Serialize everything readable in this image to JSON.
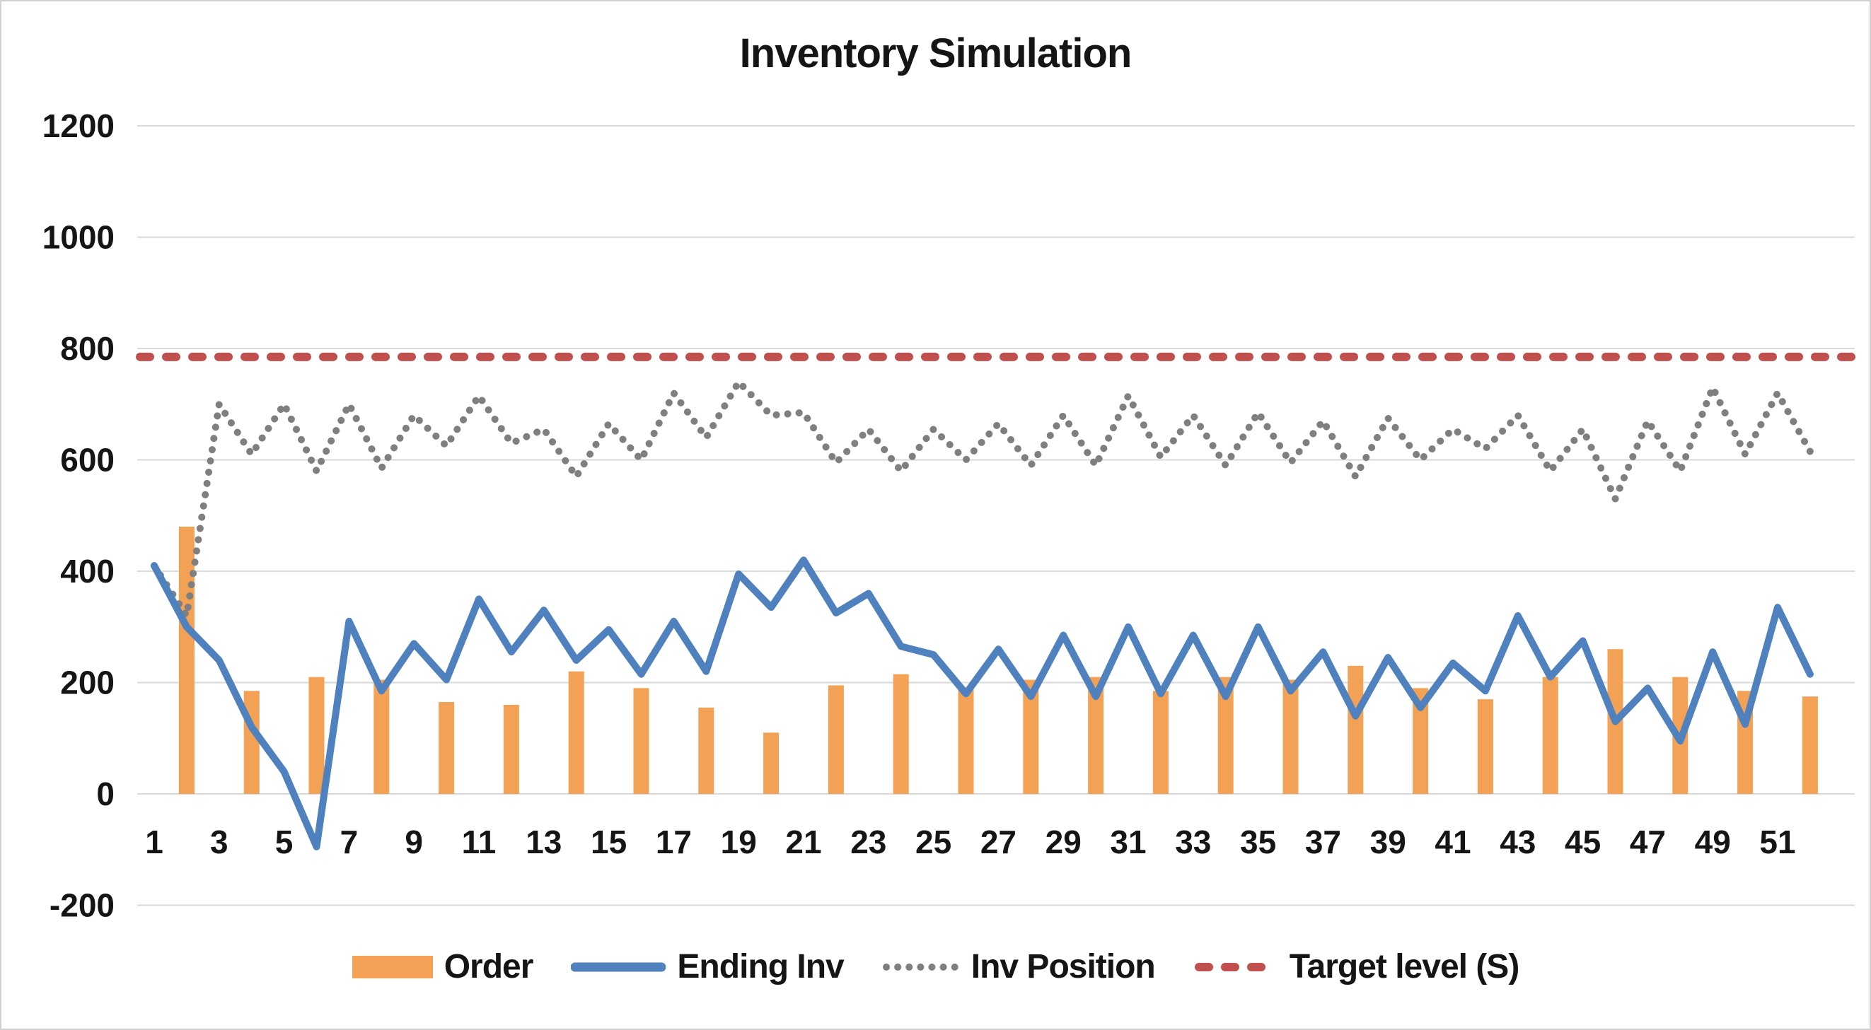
{
  "title": "Inventory Simulation",
  "chart_data": {
    "type": "bar+line combo",
    "title": "Inventory Simulation",
    "n_periods": 52,
    "x_tick_labels": [
      "1",
      "3",
      "5",
      "7",
      "9",
      "11",
      "13",
      "15",
      "17",
      "19",
      "21",
      "23",
      "25",
      "27",
      "29",
      "31",
      "33",
      "35",
      "37",
      "39",
      "41",
      "43",
      "45",
      "47",
      "49",
      "51"
    ],
    "x_tick_periods": [
      1,
      3,
      5,
      7,
      9,
      11,
      13,
      15,
      17,
      19,
      21,
      23,
      25,
      27,
      29,
      31,
      33,
      35,
      37,
      39,
      41,
      43,
      45,
      47,
      49,
      51
    ],
    "y_axis": {
      "min": -200,
      "max": 1200,
      "step": 200,
      "grid": true
    },
    "legend_position": "bottom",
    "series": [
      {
        "name": "Order",
        "type": "bar",
        "color": "#F2A155",
        "values": [
          null,
          480,
          null,
          185,
          null,
          210,
          null,
          205,
          null,
          165,
          null,
          160,
          null,
          220,
          null,
          190,
          null,
          155,
          null,
          110,
          null,
          195,
          null,
          215,
          null,
          190,
          null,
          205,
          null,
          210,
          null,
          185,
          null,
          210,
          null,
          205,
          null,
          230,
          null,
          190,
          null,
          170,
          null,
          210,
          null,
          260,
          null,
          210,
          null,
          185,
          null,
          175
        ]
      },
      {
        "name": "Ending Inv",
        "type": "line",
        "color": "#4E81BD",
        "values": [
          410,
          300,
          240,
          120,
          40,
          -95,
          310,
          185,
          270,
          205,
          350,
          255,
          330,
          240,
          295,
          215,
          310,
          220,
          395,
          335,
          420,
          325,
          360,
          265,
          250,
          180,
          260,
          175,
          285,
          175,
          300,
          180,
          285,
          175,
          300,
          185,
          255,
          140,
          245,
          155,
          235,
          185,
          320,
          210,
          275,
          130,
          190,
          95,
          255,
          125,
          335,
          215
        ]
      },
      {
        "name": "Inv Position",
        "type": "dotted-line",
        "color": "#7F7F7F",
        "values": [
          410,
          320,
          700,
          610,
          700,
          580,
          700,
          585,
          680,
          625,
          715,
          630,
          655,
          570,
          665,
          600,
          720,
          640,
          740,
          680,
          685,
          595,
          655,
          580,
          655,
          600,
          665,
          590,
          680,
          590,
          715,
          605,
          680,
          590,
          685,
          595,
          670,
          570,
          675,
          600,
          655,
          620,
          680,
          580,
          655,
          530,
          670,
          580,
          730,
          610,
          720,
          615
        ]
      },
      {
        "name": "Target level (S)",
        "type": "dashed-constant-line",
        "color": "#C0504D",
        "value": 785
      }
    ],
    "colors": {
      "gridline": "#D9D9D9",
      "text": "#151515",
      "background": "#FFFFFF"
    }
  }
}
